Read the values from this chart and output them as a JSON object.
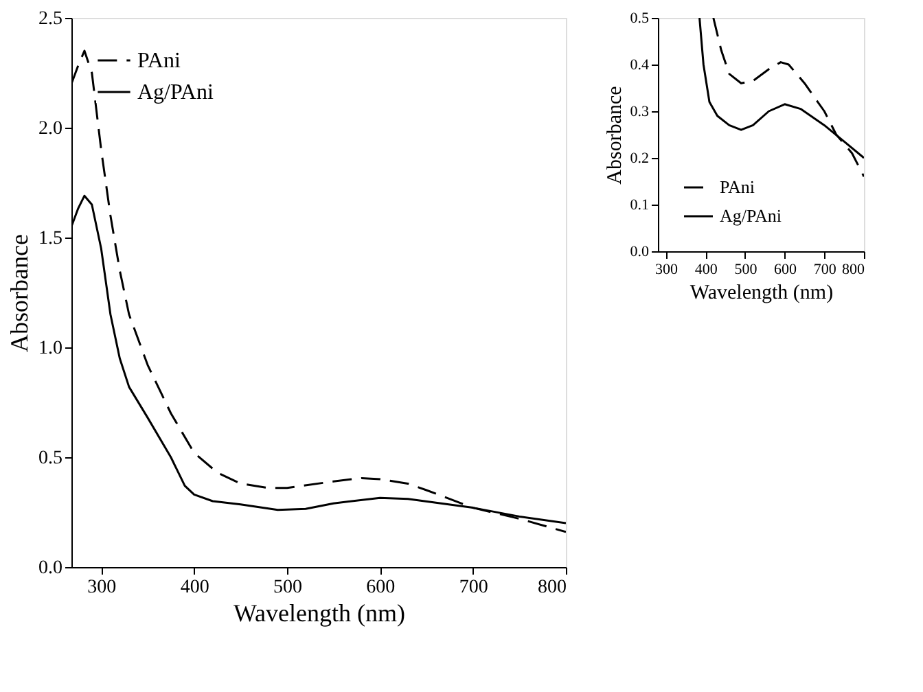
{
  "chart_data": [
    {
      "type": "line",
      "xlabel": "Wavelength (nm)",
      "ylabel": "Absorbance",
      "xlim": [
        268,
        800
      ],
      "ylim": [
        0,
        2.5
      ],
      "xticks": [
        300,
        400,
        500,
        600,
        700,
        800
      ],
      "yticks": [
        {
          "value": 0,
          "label": "0.0"
        },
        {
          "value": 0.5,
          "label": "0.5"
        },
        {
          "value": 1,
          "label": "1.0"
        },
        {
          "value": 1.5,
          "label": "1.5"
        },
        {
          "value": 2,
          "label": "2.0"
        },
        {
          "value": 2.5,
          "label": "2.5"
        }
      ],
      "grid": false,
      "legend": "top left",
      "marker": "none",
      "series": [
        {
          "name": "PAni",
          "color": "#000000",
          "line_style": "dashed",
          "x": [
            268,
            275,
            282,
            290,
            300,
            310,
            320,
            330,
            350,
            375,
            400,
            425,
            450,
            480,
            500,
            550,
            580,
            600,
            630,
            650,
            700,
            750,
            800
          ],
          "values": [
            2.2,
            2.28,
            2.35,
            2.25,
            1.9,
            1.6,
            1.35,
            1.15,
            0.92,
            0.7,
            0.52,
            0.43,
            0.38,
            0.36,
            0.36,
            0.39,
            0.405,
            0.4,
            0.38,
            0.35,
            0.27,
            0.22,
            0.16
          ]
        },
        {
          "name": "Ag/PAni",
          "color": "#000000",
          "line_style": "solid",
          "x": [
            268,
            275,
            282,
            290,
            300,
            310,
            320,
            330,
            350,
            375,
            390,
            400,
            420,
            450,
            490,
            520,
            550,
            600,
            630,
            700,
            750,
            800
          ],
          "values": [
            1.55,
            1.63,
            1.69,
            1.65,
            1.45,
            1.15,
            0.95,
            0.82,
            0.68,
            0.5,
            0.37,
            0.33,
            0.3,
            0.285,
            0.26,
            0.265,
            0.29,
            0.315,
            0.31,
            0.27,
            0.23,
            0.2
          ]
        }
      ]
    },
    {
      "type": "line",
      "xlabel": "Wavelength (nm)",
      "ylabel": "Absorbance",
      "xlim": [
        280,
        800
      ],
      "ylim": [
        0,
        0.5
      ],
      "xticks": [
        300,
        400,
        500,
        600,
        700,
        800
      ],
      "yticks": [
        {
          "value": 0,
          "label": "0.0"
        },
        {
          "value": 0.1,
          "label": "0.1"
        },
        {
          "value": 0.2,
          "label": "0.2"
        },
        {
          "value": 0.3,
          "label": "0.3"
        },
        {
          "value": 0.4,
          "label": "0.4"
        },
        {
          "value": 0.5,
          "label": "0.5"
        }
      ],
      "grid": false,
      "legend": "bottom left",
      "marker": "none",
      "series": [
        {
          "name": "PAni",
          "color": "#000000",
          "line_style": "dashed",
          "x": [
            420,
            440,
            460,
            490,
            520,
            560,
            590,
            610,
            650,
            700,
            730,
            770,
            800
          ],
          "values": [
            0.5,
            0.43,
            0.38,
            0.36,
            0.365,
            0.39,
            0.405,
            0.4,
            0.36,
            0.3,
            0.25,
            0.21,
            0.16
          ]
        },
        {
          "name": "Ag/PAni",
          "color": "#000000",
          "line_style": "solid",
          "x": [
            385,
            395,
            410,
            430,
            460,
            490,
            520,
            560,
            600,
            640,
            700,
            750,
            800
          ],
          "values": [
            0.5,
            0.4,
            0.32,
            0.29,
            0.27,
            0.26,
            0.27,
            0.3,
            0.315,
            0.305,
            0.27,
            0.235,
            0.2
          ]
        }
      ]
    }
  ]
}
